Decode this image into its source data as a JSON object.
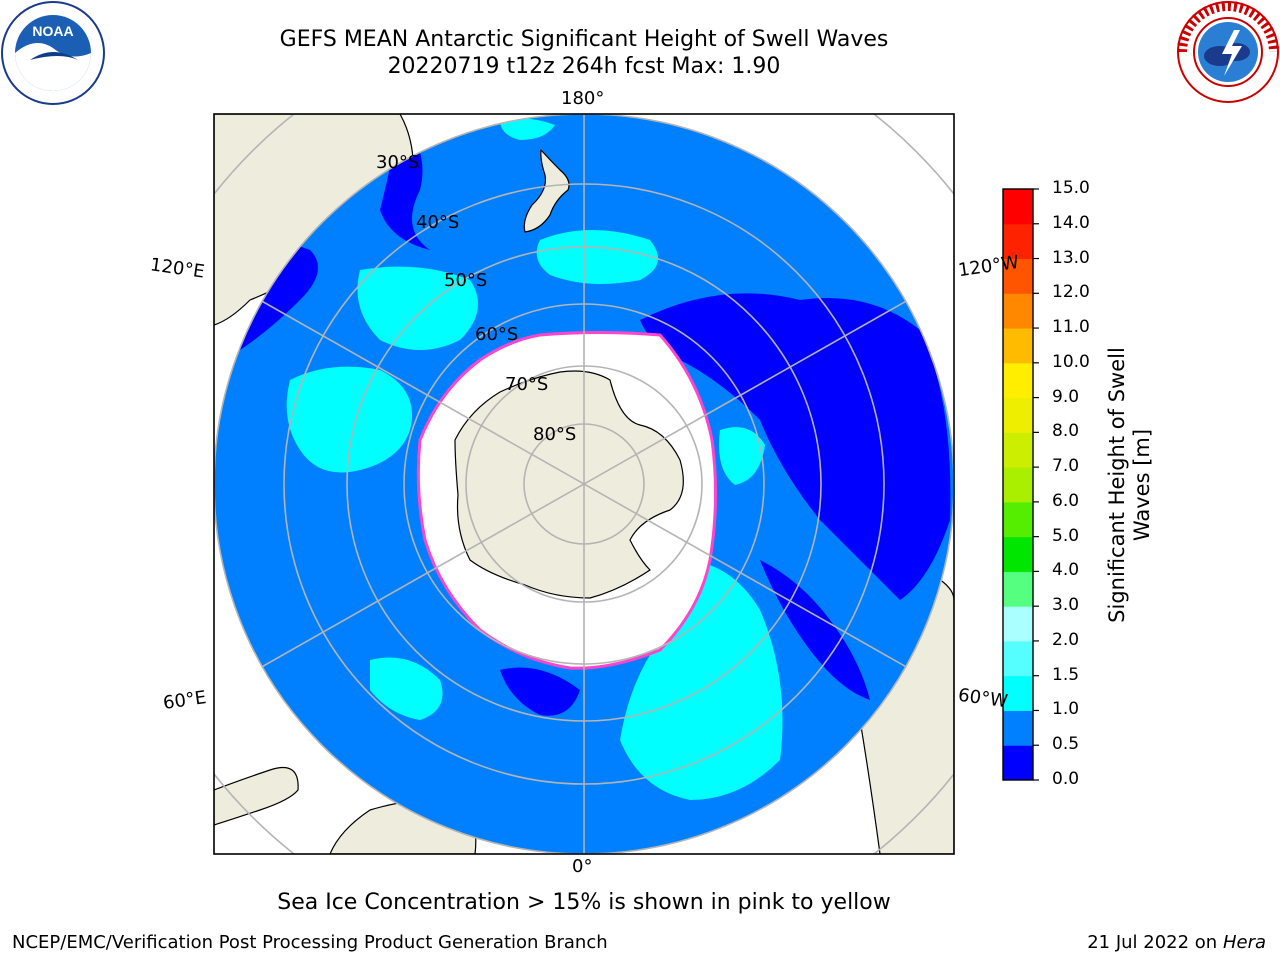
{
  "header": {
    "title_line1": "GEFS MEAN Antarctic Significant Height of Swell Waves",
    "title_line2": "20220719 t12z 264h fcst   Max: 1.90"
  },
  "logos": {
    "left": "noaa-logo",
    "right": "nws-logo",
    "left_text": "NOAA",
    "right_text": "NATIONAL WEATHER SERVICE"
  },
  "map": {
    "projection": "south-polar-stereographic",
    "longitude_labels": {
      "top": "180°",
      "bottom": "0°",
      "left_upper": "120°E",
      "left_lower": "60°E",
      "right_upper": "120°W",
      "right_lower": "60°W"
    },
    "latitude_labels": [
      "30°S",
      "40°S",
      "50°S",
      "60°S",
      "70°S",
      "80°S"
    ],
    "colors": {
      "land": "#eeecdc",
      "ocean_0_0_5": "#0000ff",
      "ocean_0_5_1_0": "#0080ff",
      "ocean_1_0_1_5": "#00ffff",
      "ice_edge": "#ff44cc",
      "grid": "#b4b4b4"
    }
  },
  "colorbar": {
    "label": "Significant Height of Swell Waves [m]",
    "ticks": [
      "0.0",
      "0.5",
      "1.0",
      "1.5",
      "2.0",
      "3.0",
      "4.0",
      "5.0",
      "6.0",
      "7.0",
      "8.0",
      "9.0",
      "10.0",
      "11.0",
      "12.0",
      "13.0",
      "14.0",
      "15.0"
    ],
    "colors": [
      "#0000ff",
      "#0080ff",
      "#00ffff",
      "#55ffff",
      "#aaffff",
      "#55ff80",
      "#00e600",
      "#55ee00",
      "#aaee00",
      "#ccee00",
      "#eeee00",
      "#ffee00",
      "#ffbb00",
      "#ff8800",
      "#ff5500",
      "#ff2200",
      "#ff0000"
    ]
  },
  "caption": "Sea Ice Concentration > 15% is shown in pink to yellow",
  "footer": {
    "left": "NCEP/EMC/Verification Post Processing Product Generation Branch",
    "right_prefix": "21 Jul 2022 on ",
    "right_host": "Hera"
  }
}
